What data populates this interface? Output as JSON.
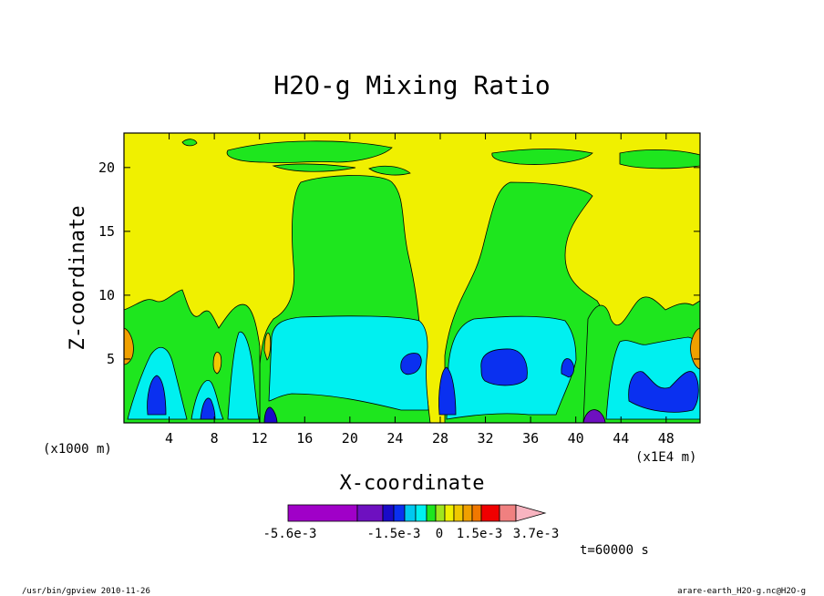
{
  "chart_data": {
    "type": "heatmap",
    "title": "H2O-g Mixing Ratio",
    "xlabel": "X-coordinate",
    "ylabel": "Z-coordinate",
    "x_unit": "(x1000 m)",
    "x_scale_note": "(x1E4 m)",
    "xlim": [
      0,
      51
    ],
    "ylim": [
      0,
      22.7
    ],
    "x_ticks": [
      4,
      8,
      12,
      16,
      20,
      24,
      28,
      32,
      36,
      40,
      44,
      48
    ],
    "y_ticks": [
      5,
      10,
      15,
      20
    ],
    "colorbar": {
      "labels": [
        "-5.6e-3",
        "-1.5e-3",
        "0",
        "1.5e-3",
        "3.7e-3"
      ],
      "colors": [
        "#a000c8",
        "#a000c8",
        "#a000c8",
        "#6e10c0",
        "#1a0ac8",
        "#0a30f0",
        "#00c8f0",
        "#00f0f0",
        "#1ee61e",
        "#a0e61e",
        "#f0f000",
        "#f0c800",
        "#f0a000",
        "#f07800",
        "#f00000",
        "#f08080",
        "#f8b4c0"
      ]
    },
    "regions": [
      {
        "level": "yellow",
        "desc": "background / upper atmosphere"
      },
      {
        "level": "green",
        "desc": "columns near x=16-28 and x=31-40"
      },
      {
        "level": "cyan",
        "desc": "lower layer z<8"
      },
      {
        "level": "blue",
        "desc": "cores near x=3,30,34,47"
      }
    ]
  },
  "annotations": {
    "time": "t=60000 s",
    "footer_left": "/usr/bin/gpview   2010-11-26",
    "footer_right": "arare-earth_H2O-g.nc@H2O-g"
  }
}
